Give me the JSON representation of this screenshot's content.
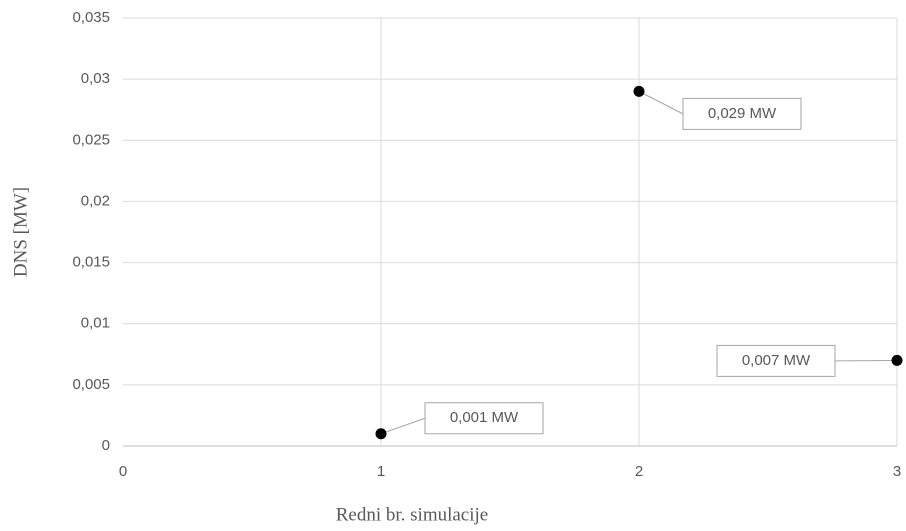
{
  "chart_data": {
    "type": "scatter",
    "x_label": "Redni br. simulacije",
    "y_label": "DNS [MW]",
    "x": [
      1,
      2,
      3
    ],
    "values": [
      0.001,
      0.029,
      0.007
    ],
    "value_labels": [
      "0,001 MW",
      "0,029 MW",
      "0,007 MW"
    ],
    "color": "#000000",
    "xlim": [
      0,
      3
    ],
    "xticks": [
      0,
      1,
      2,
      3
    ],
    "ylim": [
      0,
      0.035
    ],
    "yticks": [
      0,
      {
        "value": 0.005,
        "label": "0,005"
      },
      {
        "value": 0.01,
        "label": "0,01"
      },
      {
        "value": 0.015,
        "label": "0,015"
      },
      {
        "value": 0.02,
        "label": "0,02"
      },
      {
        "value": 0.025,
        "label": "0,025"
      },
      {
        "value": 0.03,
        "label": "0,03"
      },
      {
        "value": 0.035,
        "label": "0,035"
      }
    ],
    "grid": true
  }
}
